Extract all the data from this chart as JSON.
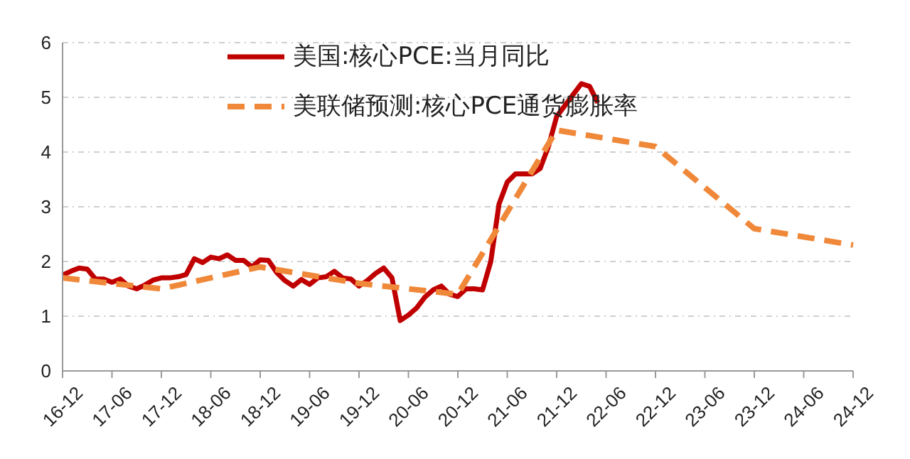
{
  "chart_data": {
    "type": "line",
    "categories": [
      "16-12",
      null,
      null,
      null,
      null,
      null,
      "17-06",
      null,
      null,
      null,
      null,
      null,
      "17-12",
      null,
      null,
      null,
      null,
      null,
      "18-06",
      null,
      null,
      null,
      null,
      null,
      "18-12",
      null,
      null,
      null,
      null,
      null,
      "19-06",
      null,
      null,
      null,
      null,
      null,
      "19-12",
      null,
      null,
      null,
      null,
      null,
      "20-06",
      null,
      null,
      null,
      null,
      null,
      "20-12",
      null,
      null,
      null,
      null,
      null,
      "21-06",
      null,
      null,
      null,
      null,
      null,
      "21-12",
      null,
      null,
      null,
      null,
      null,
      "22-06",
      null,
      null,
      null,
      null,
      null,
      "22-12",
      null,
      null,
      null,
      null,
      null,
      "23-06",
      null,
      null,
      null,
      null,
      null,
      "23-12",
      null,
      null,
      null,
      null,
      null,
      "24-06",
      null,
      null,
      null,
      null,
      null,
      "24-12"
    ],
    "ylim": [
      0,
      6
    ],
    "yticks": [
      0,
      1,
      2,
      3,
      4,
      5,
      6
    ],
    "grid": "y",
    "legend": "top",
    "marker": "none",
    "series": [
      {
        "name": "美国:核心PCE:当月同比",
        "color": "#c00000",
        "line_style": "solid",
        "values": [
          1.75,
          1.82,
          1.88,
          1.86,
          1.68,
          1.68,
          1.62,
          1.68,
          1.55,
          1.5,
          1.57,
          1.66,
          1.7,
          1.7,
          1.72,
          1.76,
          2.05,
          1.98,
          2.08,
          2.05,
          2.12,
          2.02,
          2.02,
          1.9,
          2.03,
          2.02,
          1.8,
          1.65,
          1.55,
          1.67,
          1.58,
          1.7,
          1.72,
          1.82,
          1.7,
          1.68,
          1.55,
          1.65,
          1.78,
          1.88,
          1.7,
          0.92,
          1.02,
          1.15,
          1.35,
          1.48,
          1.55,
          1.4,
          1.36,
          1.5,
          1.5,
          1.48,
          2.0,
          3.05,
          3.45,
          3.6,
          3.6,
          3.6,
          3.7,
          4.1,
          4.65,
          4.85,
          5.05,
          5.25,
          5.2,
          4.9,
          null,
          null,
          null,
          null,
          null,
          null,
          null,
          null,
          null,
          null,
          null,
          null,
          null,
          null,
          null,
          null,
          null,
          null,
          null,
          null,
          null,
          null,
          null,
          null,
          null,
          null,
          null,
          null,
          null,
          null,
          null
        ]
      },
      {
        "name": "美联储预测:核心PCE通货膨胀率",
        "color": "#f0883a",
        "line_style": "dashed",
        "x": [
          "16-12",
          "17-12",
          "18-12",
          "19-12",
          "20-12",
          "21-12",
          "22-12",
          "23-12",
          "24-12"
        ],
        "values": [
          1.7,
          1.5,
          1.9,
          1.6,
          1.4,
          4.4,
          4.1,
          2.6,
          2.3
        ]
      }
    ]
  }
}
